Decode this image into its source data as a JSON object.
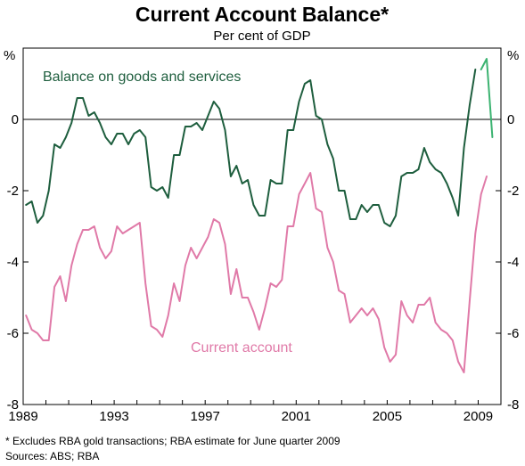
{
  "chart_data": {
    "type": "line",
    "title": "Current Account Balance*",
    "subtitle": "Per cent of GDP",
    "y_unit_left": "%",
    "y_unit_right": "%",
    "ylim": [
      -8,
      2
    ],
    "y_ticks": [
      0,
      -2,
      -4,
      -6,
      -8
    ],
    "y_tick_labels": [
      "0",
      "-2",
      "-4",
      "-6",
      "-8"
    ],
    "xlim": [
      1989.0,
      2010.0
    ],
    "x_ticks": [
      1989,
      1993,
      1997,
      2001,
      2005,
      2009
    ],
    "x_tick_labels": [
      "1989",
      "1993",
      "1997",
      "2001",
      "2005",
      "2009"
    ],
    "zero_line": true,
    "grid": false,
    "series": [
      {
        "name": "Balance on goods and services",
        "color": "#1e5e3e",
        "x": [
          1989.125,
          1989.375,
          1989.625,
          1989.875,
          1990.125,
          1990.375,
          1990.625,
          1990.875,
          1991.125,
          1991.375,
          1991.625,
          1991.875,
          1992.125,
          1992.375,
          1992.625,
          1992.875,
          1993.125,
          1993.375,
          1993.625,
          1993.875,
          1994.125,
          1994.375,
          1994.625,
          1994.875,
          1995.125,
          1995.375,
          1995.625,
          1995.875,
          1996.125,
          1996.375,
          1996.625,
          1996.875,
          1997.125,
          1997.375,
          1997.625,
          1997.875,
          1998.125,
          1998.375,
          1998.625,
          1998.875,
          1999.125,
          1999.375,
          1999.625,
          1999.875,
          2000.125,
          2000.375,
          2000.625,
          2000.875,
          2001.125,
          2001.375,
          2001.625,
          2001.875,
          2002.125,
          2002.375,
          2002.625,
          2002.875,
          2003.125,
          2003.375,
          2003.625,
          2003.875,
          2004.125,
          2004.375,
          2004.625,
          2004.875,
          2005.125,
          2005.375,
          2005.625,
          2005.875,
          2006.125,
          2006.375,
          2006.625,
          2006.875,
          2007.125,
          2007.375,
          2007.625,
          2007.875,
          2008.125,
          2008.375,
          2008.625,
          2008.875
        ],
        "values": [
          -2.4,
          -2.3,
          -2.9,
          -2.7,
          -2.0,
          -0.7,
          -0.8,
          -0.5,
          -0.1,
          0.6,
          0.6,
          0.1,
          0.2,
          -0.1,
          -0.5,
          -0.7,
          -0.4,
          -0.4,
          -0.7,
          -0.4,
          -0.3,
          -0.5,
          -1.9,
          -2.0,
          -1.9,
          -2.2,
          -1.0,
          -1.0,
          -0.2,
          -0.2,
          -0.1,
          -0.3,
          0.1,
          0.5,
          0.3,
          -0.3,
          -1.6,
          -1.3,
          -1.8,
          -1.7,
          -2.4,
          -2.7,
          -2.7,
          -1.7,
          -1.8,
          -1.8,
          -0.3,
          -0.3,
          0.5,
          1.0,
          1.1,
          0.1,
          0.0,
          -0.7,
          -1.1,
          -2.0,
          -2.0,
          -2.8,
          -2.8,
          -2.4,
          -2.6,
          -2.4,
          -2.4,
          -2.9,
          -3.0,
          -2.7,
          -1.6,
          -1.5,
          -1.5,
          -1.4,
          -0.8,
          -1.2,
          -1.4,
          -1.5,
          -1.8,
          -2.2,
          -2.7,
          -0.8,
          0.4,
          1.4
        ]
      },
      {
        "name": "Balance on goods and services estimate",
        "color": "#3cb371",
        "x": [
          2009.125,
          2009.375,
          2009.625
        ],
        "values": [
          1.4,
          1.7,
          -0.5
        ]
      },
      {
        "name": "Current account",
        "color": "#e07aa8",
        "x": [
          1989.125,
          1989.375,
          1989.625,
          1989.875,
          1990.125,
          1990.375,
          1990.625,
          1990.875,
          1991.125,
          1991.375,
          1991.625,
          1991.875,
          1992.125,
          1992.375,
          1992.625,
          1992.875,
          1993.125,
          1993.375,
          1993.625,
          1993.875,
          1994.125,
          1994.375,
          1994.625,
          1994.875,
          1995.125,
          1995.375,
          1995.625,
          1995.875,
          1996.125,
          1996.375,
          1996.625,
          1996.875,
          1997.125,
          1997.375,
          1997.625,
          1997.875,
          1998.125,
          1998.375,
          1998.625,
          1998.875,
          1999.125,
          1999.375,
          1999.625,
          1999.875,
          2000.125,
          2000.375,
          2000.625,
          2000.875,
          2001.125,
          2001.375,
          2001.625,
          2001.875,
          2002.125,
          2002.375,
          2002.625,
          2002.875,
          2003.125,
          2003.375,
          2003.625,
          2003.875,
          2004.125,
          2004.375,
          2004.625,
          2004.875,
          2005.125,
          2005.375,
          2005.625,
          2005.875,
          2006.125,
          2006.375,
          2006.625,
          2006.875,
          2007.125,
          2007.375,
          2007.625,
          2007.875,
          2008.125,
          2008.375,
          2008.625,
          2008.875,
          2009.125,
          2009.375
        ],
        "values": [
          -5.5,
          -5.9,
          -6.0,
          -6.2,
          -6.2,
          -4.7,
          -4.4,
          -5.1,
          -4.1,
          -3.5,
          -3.1,
          -3.1,
          -3.0,
          -3.6,
          -3.9,
          -3.7,
          -3.0,
          -3.2,
          -3.1,
          -3.0,
          -2.9,
          -4.6,
          -5.8,
          -5.9,
          -6.1,
          -5.5,
          -4.6,
          -5.1,
          -4.1,
          -3.6,
          -3.9,
          -3.6,
          -3.3,
          -2.8,
          -2.9,
          -3.5,
          -4.9,
          -4.2,
          -5.0,
          -5.0,
          -5.4,
          -5.9,
          -5.3,
          -4.6,
          -4.7,
          -4.5,
          -3.0,
          -3.0,
          -2.1,
          -1.8,
          -1.5,
          -2.5,
          -2.6,
          -3.6,
          -4.0,
          -4.8,
          -4.9,
          -5.7,
          -5.5,
          -5.3,
          -5.5,
          -5.3,
          -5.6,
          -6.4,
          -6.8,
          -6.6,
          -5.1,
          -5.5,
          -5.7,
          -5.2,
          -5.2,
          -5.0,
          -5.7,
          -5.9,
          -6.0,
          -6.2,
          -6.8,
          -7.1,
          -5.1,
          -3.2,
          -2.1,
          -1.6
        ]
      }
    ],
    "annotations": [
      {
        "text": "Balance on goods and services",
        "series": "Balance on goods and services"
      },
      {
        "text": "Current account",
        "series": "Current account"
      }
    ]
  },
  "footnote": "*    Excludes RBA gold transactions; RBA estimate for June quarter 2009",
  "sources": "Sources: ABS; RBA"
}
